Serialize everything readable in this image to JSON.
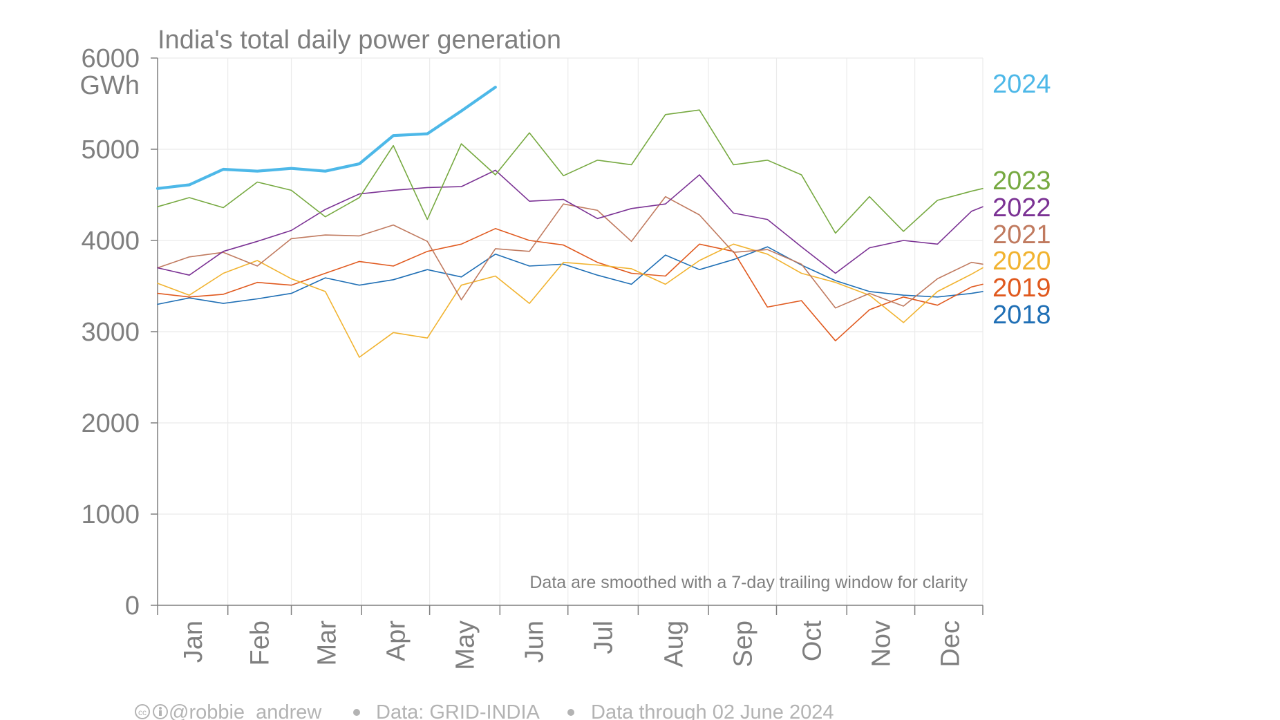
{
  "chart_data": {
    "type": "line",
    "title": "India's total daily power generation",
    "y_unit": "GWh",
    "ylim": [
      0,
      6000
    ],
    "yticks": [
      0,
      1000,
      2000,
      3000,
      4000,
      5000,
      6000
    ],
    "yticklabels": [
      "0",
      "1000",
      "2000",
      "3000",
      "4000",
      "5000",
      "6000"
    ],
    "xlim_day_of_year": [
      1,
      365
    ],
    "months": [
      "Jan",
      "Feb",
      "Mar",
      "Apr",
      "May",
      "Jun",
      "Jul",
      "Aug",
      "Sep",
      "Oct",
      "Nov",
      "Dec"
    ],
    "grid": true,
    "legend_placement": "right",
    "annotation": "Data are smoothed with a 7-day trailing window for clarity",
    "x_points": [
      1,
      15,
      30,
      45,
      60,
      75,
      90,
      105,
      120,
      135,
      150,
      165,
      180,
      195,
      210,
      225,
      240,
      255,
      270,
      285,
      300,
      315,
      330,
      345,
      360,
      365
    ],
    "series": [
      {
        "name": "2024",
        "color": "#4DB8E8",
        "width": 4.2,
        "values": [
          4570,
          4610,
          4780,
          4760,
          4790,
          4760,
          4840,
          5150,
          5170,
          5420,
          5680,
          null,
          null,
          null,
          null,
          null,
          null,
          null,
          null,
          null,
          null,
          null,
          null,
          null,
          null,
          null
        ]
      },
      {
        "name": "2023",
        "color": "#76A940",
        "width": 1.6,
        "values": [
          4370,
          4470,
          4360,
          4640,
          4550,
          4260,
          4470,
          5040,
          4230,
          5060,
          4720,
          5180,
          4710,
          4880,
          4830,
          5380,
          5430,
          4830,
          4880,
          4720,
          4080,
          4480,
          4100,
          4440,
          4540,
          4570
        ]
      },
      {
        "name": "2022",
        "color": "#7B3294",
        "width": 1.6,
        "values": [
          3700,
          3620,
          3880,
          3990,
          4110,
          4340,
          4510,
          4550,
          4580,
          4590,
          4770,
          4430,
          4450,
          4240,
          4350,
          4400,
          4720,
          4300,
          4230,
          3930,
          3640,
          3920,
          4000,
          3960,
          4320,
          4370
        ]
      },
      {
        "name": "2021",
        "color": "#C07A5F",
        "width": 1.6,
        "values": [
          3700,
          3820,
          3870,
          3720,
          4020,
          4060,
          4050,
          4170,
          3990,
          3350,
          3910,
          3880,
          4400,
          4330,
          3990,
          4480,
          4280,
          3870,
          3900,
          3740,
          3260,
          3420,
          3280,
          3580,
          3760,
          3740
        ]
      },
      {
        "name": "2020",
        "color": "#F1B330",
        "width": 1.6,
        "values": [
          3530,
          3400,
          3640,
          3780,
          3580,
          3440,
          2720,
          2990,
          2930,
          3510,
          3610,
          3310,
          3760,
          3730,
          3690,
          3520,
          3780,
          3960,
          3850,
          3640,
          3540,
          3400,
          3100,
          3440,
          3630,
          3700
        ]
      },
      {
        "name": "2019",
        "color": "#E0591E",
        "width": 1.6,
        "values": [
          3420,
          3380,
          3410,
          3540,
          3510,
          3640,
          3770,
          3720,
          3880,
          3960,
          4130,
          4000,
          3950,
          3760,
          3640,
          3610,
          3960,
          3880,
          3270,
          3340,
          2900,
          3240,
          3380,
          3290,
          3490,
          3520
        ]
      },
      {
        "name": "2018",
        "color": "#1F6FB5",
        "width": 1.6,
        "values": [
          3300,
          3370,
          3310,
          3360,
          3420,
          3590,
          3510,
          3570,
          3680,
          3600,
          3850,
          3720,
          3740,
          3620,
          3520,
          3840,
          3680,
          3790,
          3930,
          3730,
          3560,
          3440,
          3400,
          3380,
          3420,
          3440
        ]
      }
    ]
  },
  "footer": {
    "handle": "@robbie_andrew",
    "source": "Data: GRID-INDIA",
    "through": "Data through 02 June 2024"
  }
}
